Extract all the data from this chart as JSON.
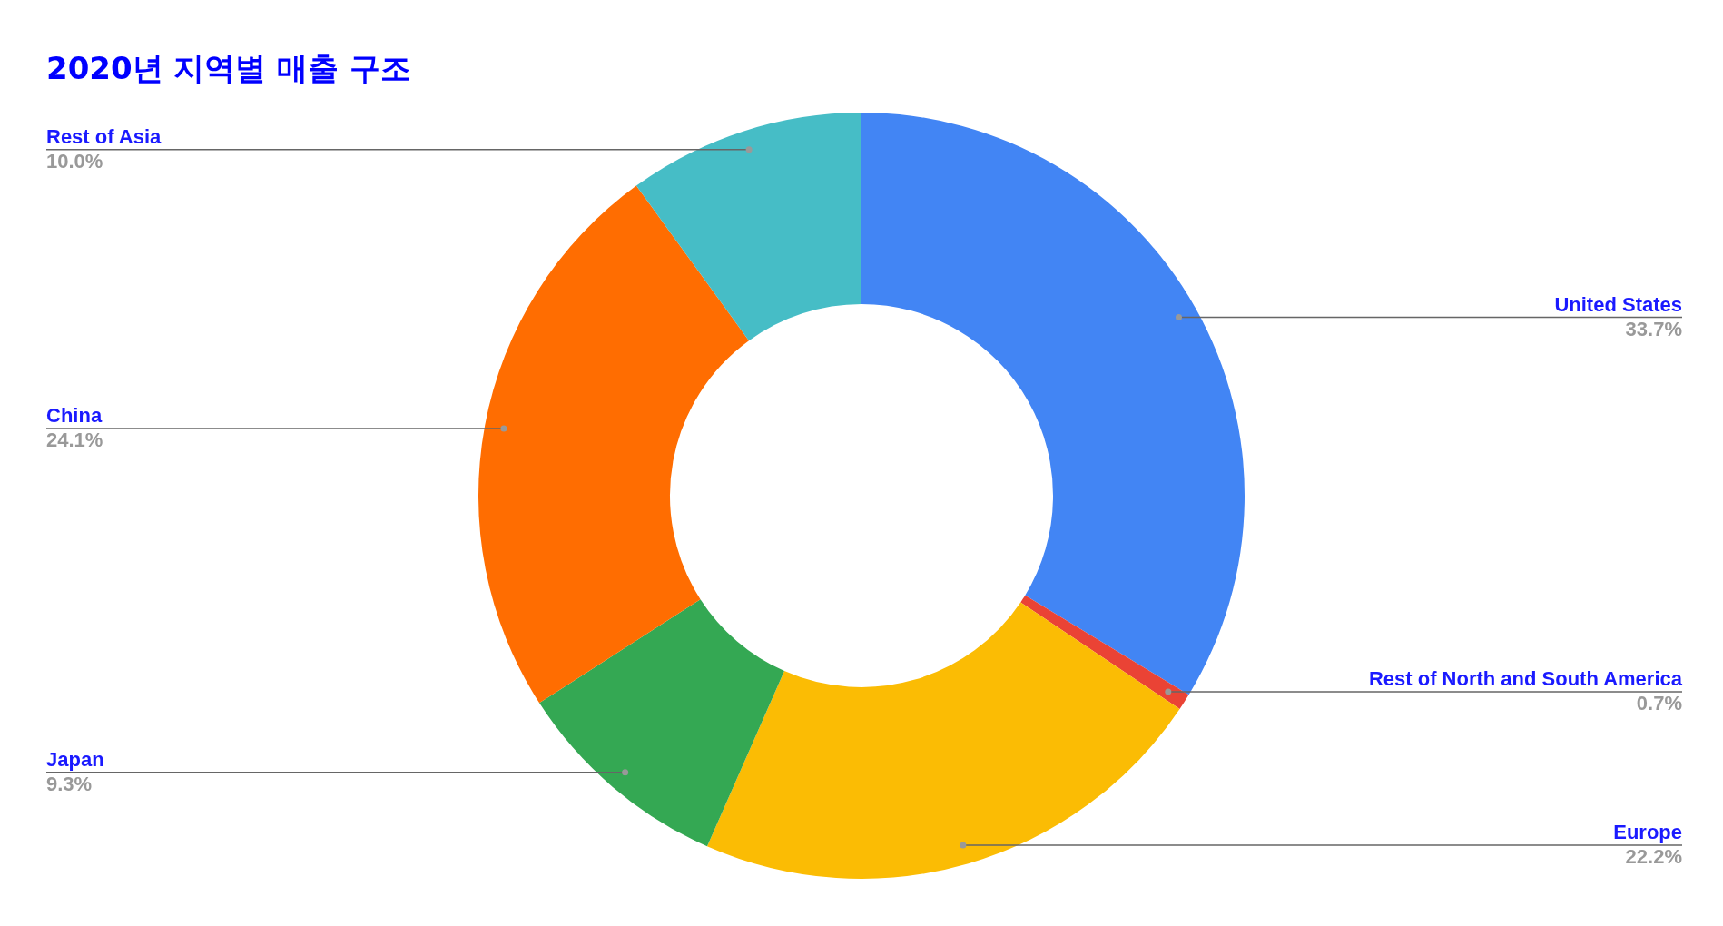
{
  "chart_data": {
    "type": "donut",
    "title": "2020년 지역별 매출 구조",
    "categories": [
      "United States",
      "Rest of North and South America",
      "Europe",
      "Japan",
      "China",
      "Rest of Asia"
    ],
    "values": [
      33.7,
      0.7,
      22.2,
      9.3,
      24.1,
      10.0
    ],
    "value_labels": [
      "33.7%",
      "0.7%",
      "22.2%",
      "9.3%",
      "24.1%",
      "10.0%"
    ],
    "colors": [
      "#4285f4",
      "#ea4335",
      "#fbbc04",
      "#34a853",
      "#ff6d01",
      "#46bdc6"
    ],
    "legend": false
  }
}
